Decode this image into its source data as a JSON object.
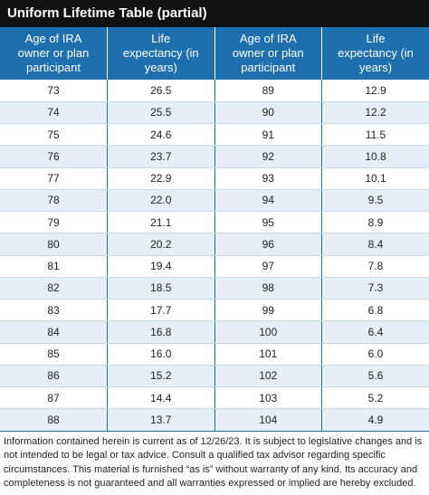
{
  "title": "Uniform Lifetime Table (partial)",
  "table": {
    "headers": [
      "Age of IRA owner or plan participant",
      "Life expectancy (in years)",
      "Age of IRA owner or plan participant",
      "Life expectancy (in years)"
    ],
    "rows": [
      [
        "73",
        "26.5",
        "89",
        "12.9"
      ],
      [
        "74",
        "25.5",
        "90",
        "12.2"
      ],
      [
        "75",
        "24.6",
        "91",
        "11.5"
      ],
      [
        "76",
        "23.7",
        "92",
        "10.8"
      ],
      [
        "77",
        "22.9",
        "93",
        "10.1"
      ],
      [
        "78",
        "22.0",
        "94",
        "9.5"
      ],
      [
        "79",
        "21.1",
        "95",
        "8.9"
      ],
      [
        "80",
        "20.2",
        "96",
        "8.4"
      ],
      [
        "81",
        "19.4",
        "97",
        "7.8"
      ],
      [
        "82",
        "18.5",
        "98",
        "7.3"
      ],
      [
        "83",
        "17.7",
        "99",
        "6.8"
      ],
      [
        "84",
        "16.8",
        "100",
        "6.4"
      ],
      [
        "85",
        "16.0",
        "101",
        "6.0"
      ],
      [
        "86",
        "15.2",
        "102",
        "5.6"
      ],
      [
        "87",
        "14.4",
        "103",
        "5.2"
      ],
      [
        "88",
        "13.7",
        "104",
        "4.9"
      ]
    ]
  },
  "footer": "Information contained herein is current as of 12/26/23. It is subject to legislative changes and is not intended to be legal or tax advice. Consult a qualified tax advisor regarding specific circumstances. This material is furnished “as is” without warranty of any kind. Its accuracy and completeness is not guaranteed and all warranties expressed or implied are hereby excluded."
}
